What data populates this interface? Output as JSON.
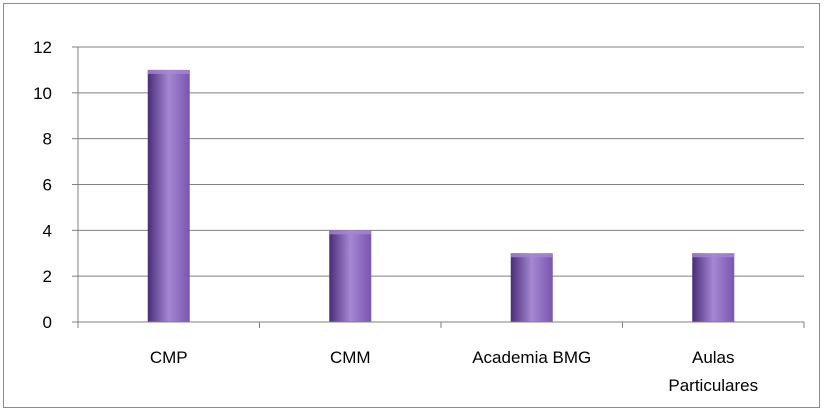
{
  "chart_data": {
    "type": "bar",
    "categories": [
      "CMP",
      "CMM",
      "Academia BMG",
      "Aulas Particulares"
    ],
    "category_lines": [
      [
        "CMP"
      ],
      [
        "CMM"
      ],
      [
        "Academia BMG"
      ],
      [
        "Aulas",
        "Particulares"
      ]
    ],
    "values": [
      11,
      4,
      3,
      3
    ],
    "title": "",
    "xlabel": "",
    "ylabel": "",
    "ylim": [
      0,
      12
    ],
    "yticks": [
      0,
      2,
      4,
      6,
      8,
      10,
      12
    ],
    "grid": true,
    "legend": "none",
    "colors": {
      "bar_dark": "#4a2d78",
      "bar_mid": "#7a55b0",
      "bar_light": "#a587d3",
      "gridline": "#808080",
      "axis": "#808080"
    }
  }
}
